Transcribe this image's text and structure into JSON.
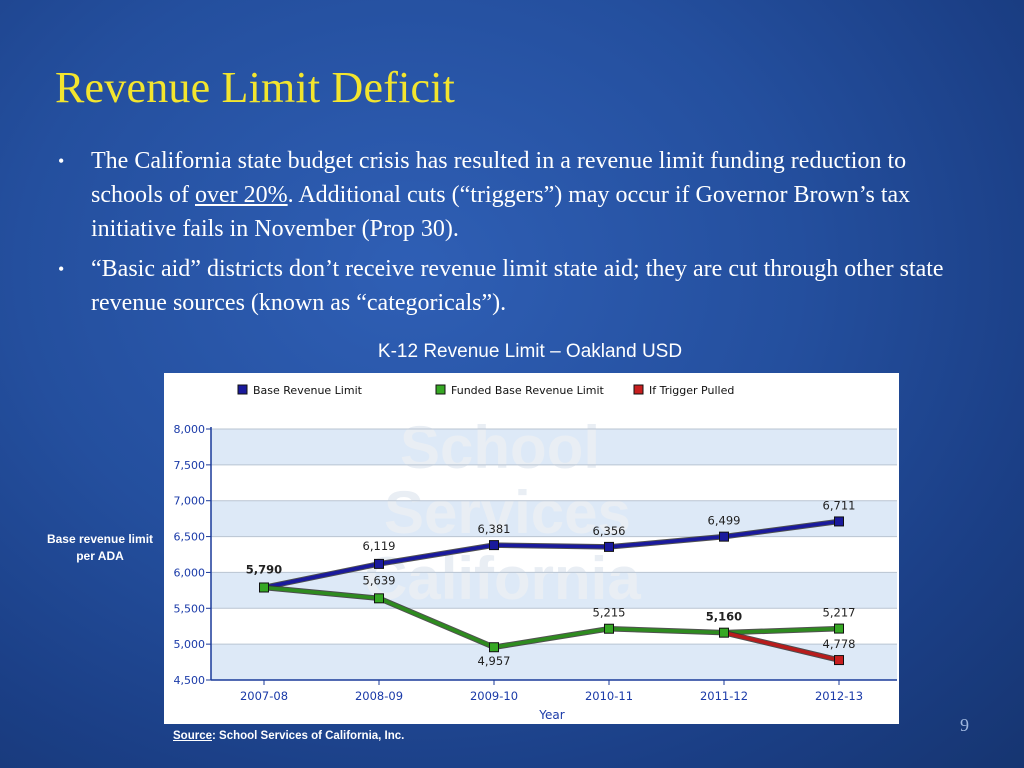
{
  "slide": {
    "title": "Revenue Limit Deficit",
    "bullets": [
      {
        "marker": "•",
        "before": "The California state budget crisis has resulted in a revenue limit funding reduction to schools of ",
        "underlined": "over 20%",
        "after": ".  Additional cuts (“triggers”) may occur if Governor Brown’s tax initiative fails in November (Prop 30)."
      },
      {
        "marker": "•",
        "text": "“Basic aid” districts don’t receive revenue limit state aid; they are cut through other state revenue sources (known as “categoricals”)."
      }
    ],
    "chart_heading": "K-12 Revenue Limit – Oakland USD",
    "ylabel_outside": "Base revenue limit per ADA",
    "source_label": "Source",
    "source_text": ": School Services of California, Inc.",
    "page_number": "9"
  },
  "chart_data": {
    "type": "line",
    "title": "K-12 Revenue Limit – Oakland USD",
    "xlabel": "Year",
    "ylabel": "Base revenue limit per ADA",
    "ylim": [
      4500,
      8000
    ],
    "yticks": [
      4500,
      5000,
      5500,
      6000,
      6500,
      7000,
      7500,
      8000
    ],
    "ytick_labels": [
      "4,500",
      "5,000",
      "5,500",
      "6,000",
      "6,500",
      "7,000",
      "7,500",
      "8,000"
    ],
    "categories": [
      "2007-08",
      "2008-09",
      "2009-10",
      "2010-11",
      "2011-12",
      "2012-13"
    ],
    "grid": true,
    "legend_position": "top",
    "series": [
      {
        "name": "Base Revenue Limit",
        "color": "#1a1a9c",
        "marker_fill": "#1a1a9c",
        "values": [
          5790,
          6119,
          6381,
          6356,
          6499,
          6711
        ],
        "labels": [
          "5,790",
          "6,119",
          "6,381",
          "6,356",
          "6,499",
          "6,711"
        ]
      },
      {
        "name": "Funded Base Revenue Limit",
        "color": "#2e8b1f",
        "marker_fill": "#36a824",
        "values": [
          5790,
          5639,
          4957,
          5215,
          5160,
          5217
        ],
        "labels": [
          "",
          "5,639",
          "4,957",
          "5,215",
          "5,160",
          "5,217"
        ]
      },
      {
        "name": "If Trigger Pulled",
        "color": "#b81c1c",
        "marker_fill": "#c81e1e",
        "values": [
          null,
          null,
          null,
          null,
          5160,
          4778
        ],
        "labels": [
          "",
          "",
          "",
          "",
          "",
          "4,778"
        ]
      }
    ],
    "watermark": "School Services California"
  }
}
